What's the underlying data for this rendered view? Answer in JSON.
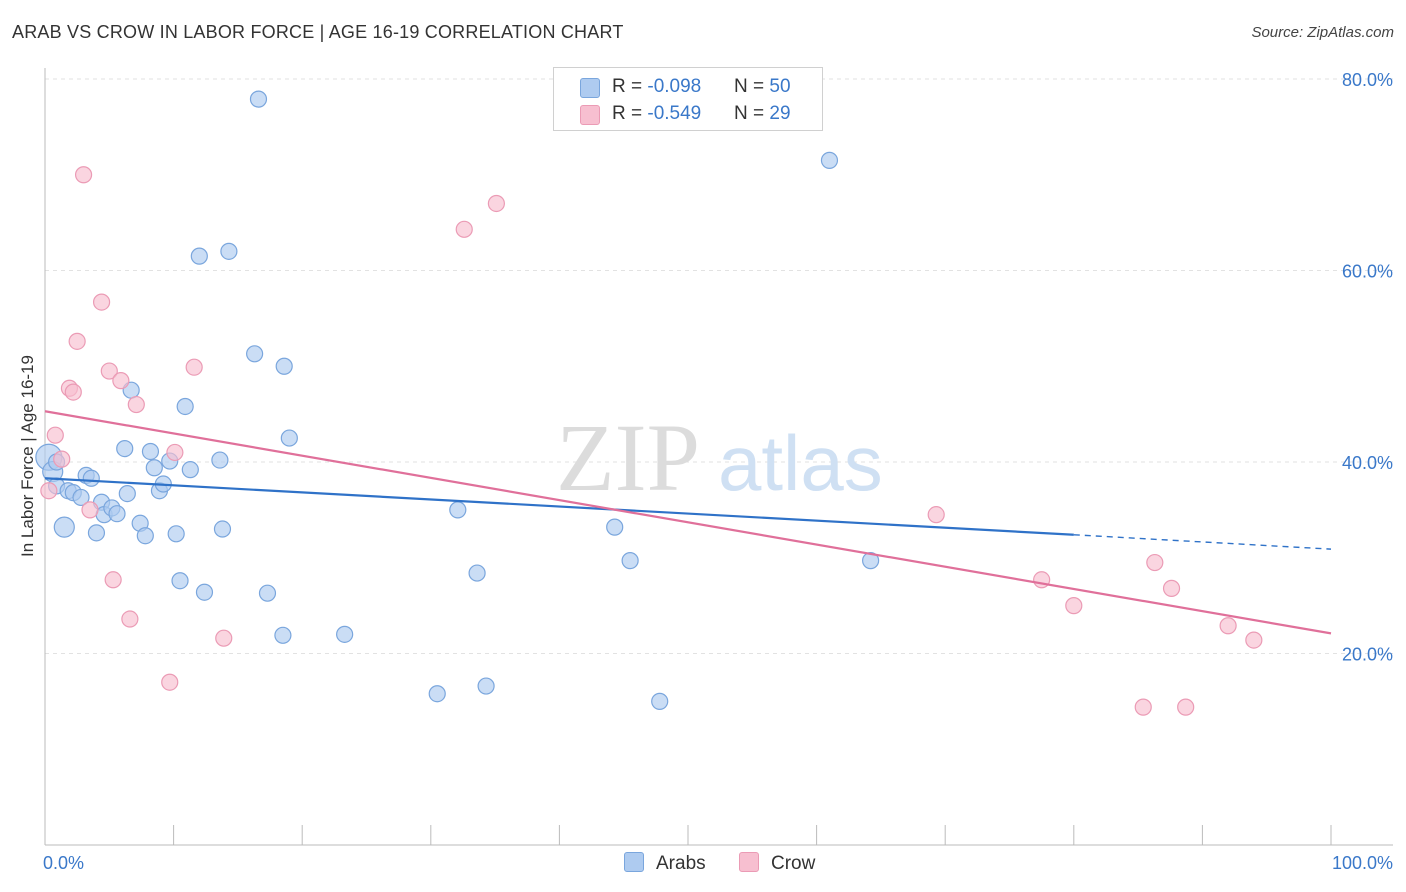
{
  "title": "ARAB VS CROW IN LABOR FORCE | AGE 16-19 CORRELATION CHART",
  "source": "Source: ZipAtlas.com",
  "watermark": {
    "zip": "ZIP",
    "atlas": "atlas"
  },
  "legend": {
    "arabs": {
      "r_label": "R = ",
      "r_value": "-0.098",
      "n_label": "N = ",
      "n_value": "50"
    },
    "crow": {
      "r_label": "R = ",
      "r_value": "-0.549",
      "n_label": "N = ",
      "n_value": "29"
    }
  },
  "bottom_legend": {
    "arabs": "Arabs",
    "crow": "Crow"
  },
  "colors": {
    "arabs_fill": "#aecbf0",
    "arabs_stroke": "#7aa6dd",
    "arabs_line": "#2f72c8",
    "crow_fill": "#f7bfd0",
    "crow_stroke": "#eb9bb5",
    "crow_line": "#e0709a",
    "axis_label": "#3a78c9",
    "grid": "#e2e2e2"
  },
  "chart_data": {
    "type": "scatter",
    "title": "ARAB VS CROW IN LABOR FORCE | AGE 16-19 CORRELATION CHART",
    "xlabel": "",
    "ylabel": "In Labor Force | Age 16-19",
    "xlim": [
      0,
      100
    ],
    "ylim": [
      0,
      80
    ],
    "x_tick_labels": [
      "0.0%",
      "100.0%"
    ],
    "y_ticks": [
      20,
      40,
      60,
      80
    ],
    "y_tick_labels": [
      "20.0%",
      "40.0%",
      "60.0%",
      "80.0%"
    ],
    "series": [
      {
        "name": "Arabs",
        "points": [
          [
            0.3,
            40.5
          ],
          [
            0.6,
            39.0
          ],
          [
            0.9,
            37.5
          ],
          [
            1.5,
            33.2
          ],
          [
            1.8,
            37.0
          ],
          [
            2.2,
            36.8
          ],
          [
            2.8,
            36.3
          ],
          [
            3.2,
            38.6
          ],
          [
            3.6,
            38.3
          ],
          [
            4.0,
            32.6
          ],
          [
            4.4,
            35.8
          ],
          [
            4.6,
            34.5
          ],
          [
            5.2,
            35.2
          ],
          [
            5.6,
            34.6
          ],
          [
            6.2,
            41.4
          ],
          [
            6.4,
            36.7
          ],
          [
            6.7,
            47.5
          ],
          [
            7.4,
            33.6
          ],
          [
            7.8,
            32.3
          ],
          [
            8.2,
            41.1
          ],
          [
            8.5,
            39.4
          ],
          [
            8.9,
            37.0
          ],
          [
            9.2,
            37.7
          ],
          [
            9.7,
            40.1
          ],
          [
            10.2,
            32.5
          ],
          [
            10.5,
            27.6
          ],
          [
            10.9,
            45.8
          ],
          [
            11.3,
            39.2
          ],
          [
            12.0,
            61.5
          ],
          [
            12.4,
            26.4
          ],
          [
            13.6,
            40.2
          ],
          [
            13.8,
            33.0
          ],
          [
            14.3,
            62.0
          ],
          [
            16.3,
            51.3
          ],
          [
            16.6,
            77.9
          ],
          [
            17.3,
            26.3
          ],
          [
            18.5,
            21.9
          ],
          [
            18.6,
            50.0
          ],
          [
            19.0,
            42.5
          ],
          [
            23.3,
            22.0
          ],
          [
            30.5,
            15.8
          ],
          [
            32.1,
            35.0
          ],
          [
            33.6,
            28.4
          ],
          [
            34.3,
            16.6
          ],
          [
            44.3,
            33.2
          ],
          [
            45.5,
            29.7
          ],
          [
            47.8,
            15.0
          ],
          [
            61.0,
            71.5
          ],
          [
            64.2,
            29.7
          ],
          [
            0.9,
            40.0
          ]
        ]
      },
      {
        "name": "Crow",
        "points": [
          [
            0.3,
            37.0
          ],
          [
            0.8,
            42.8
          ],
          [
            1.3,
            40.3
          ],
          [
            1.9,
            47.7
          ],
          [
            2.2,
            47.3
          ],
          [
            2.5,
            52.6
          ],
          [
            3.0,
            70.0
          ],
          [
            3.5,
            35.0
          ],
          [
            4.4,
            56.7
          ],
          [
            5.0,
            49.5
          ],
          [
            5.3,
            27.7
          ],
          [
            5.9,
            48.5
          ],
          [
            6.6,
            23.6
          ],
          [
            7.1,
            46.0
          ],
          [
            9.7,
            17.0
          ],
          [
            10.1,
            41.0
          ],
          [
            11.6,
            49.9
          ],
          [
            13.9,
            21.6
          ],
          [
            32.6,
            64.3
          ],
          [
            35.1,
            67.0
          ],
          [
            69.3,
            34.5
          ],
          [
            77.5,
            27.7
          ],
          [
            80.0,
            25.0
          ],
          [
            85.4,
            14.4
          ],
          [
            86.3,
            29.5
          ],
          [
            87.6,
            26.8
          ],
          [
            88.7,
            14.4
          ],
          [
            92.0,
            22.9
          ],
          [
            94.0,
            21.4
          ]
        ]
      }
    ],
    "trend_lines": [
      {
        "name": "Arabs",
        "x_solid": [
          0,
          80
        ],
        "y_solid": [
          38.3,
          32.4
        ],
        "x_dashed": [
          80,
          100
        ],
        "y_dashed": [
          32.4,
          30.9
        ]
      },
      {
        "name": "Crow",
        "x_solid": [
          0,
          100
        ],
        "y_solid": [
          45.3,
          22.1
        ]
      }
    ]
  }
}
